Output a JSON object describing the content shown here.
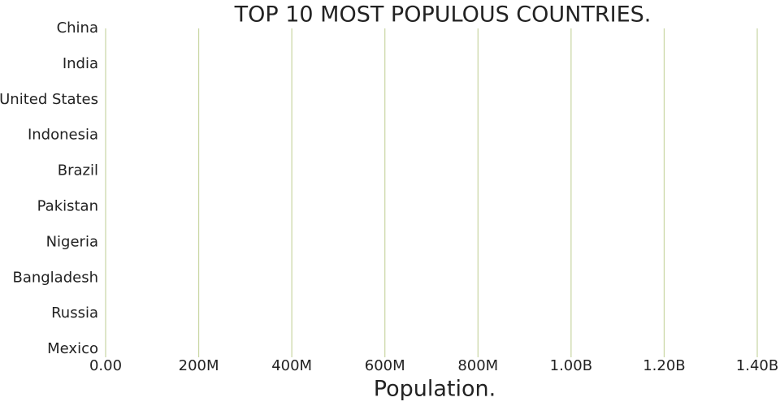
{
  "chart_data": {
    "type": "bar",
    "orientation": "horizontal",
    "title": "TOP 10 MOST POPULOUS COUNTRIES.",
    "x_label": "Population.",
    "categories": [
      "China",
      "India",
      "United States",
      "Indonesia",
      "Brazil",
      "Pakistan",
      "Nigeria",
      "Bangladesh",
      "Russia",
      "Mexico"
    ],
    "xlim": [
      0,
      1400000000
    ],
    "xticks": [
      {
        "value": 0,
        "label": "0.00"
      },
      {
        "value": 200000000,
        "label": "200M"
      },
      {
        "value": 400000000,
        "label": "400M"
      },
      {
        "value": 600000000,
        "label": "600M"
      },
      {
        "value": 800000000,
        "label": "800M"
      },
      {
        "value": 1000000000,
        "label": "1.00B"
      },
      {
        "value": 1200000000,
        "label": "1.20B"
      },
      {
        "value": 1400000000,
        "label": "1.40B"
      }
    ],
    "grid": true,
    "grid_color": "#c9d6a3"
  }
}
